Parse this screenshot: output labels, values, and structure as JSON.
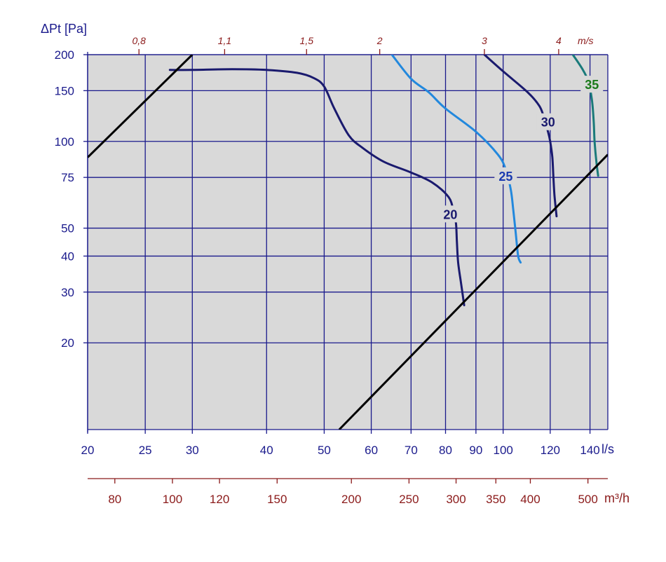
{
  "chart_data": {
    "type": "line",
    "x_scale": "log",
    "y_scale": "log",
    "xlim": [
      20,
      150
    ],
    "ylim": [
      10,
      200
    ],
    "grid": true,
    "ylabel": "ΔPt [Pa]",
    "xlabel": "l/s",
    "x2label": "m³/h",
    "velocity_label": "m/s",
    "x_ticks": [
      20,
      25,
      30,
      40,
      50,
      60,
      70,
      80,
      90,
      100,
      120,
      140
    ],
    "y_ticks": [
      20,
      30,
      40,
      50,
      75,
      100,
      150,
      200
    ],
    "x2_ticks": [
      80,
      100,
      120,
      150,
      200,
      250,
      300,
      350,
      400,
      500
    ],
    "velocity_ticks": [
      {
        "label": "0,8",
        "x": 24.4
      },
      {
        "label": "1,1",
        "x": 34.0
      },
      {
        "label": "1,5",
        "x": 46.7
      },
      {
        "label": "2",
        "x": 62.0
      },
      {
        "label": "3",
        "x": 93.0
      },
      {
        "label": "4",
        "x": 124.0
      }
    ],
    "series": [
      {
        "name": "20",
        "color": "#1a1a6e",
        "label_at": [
          81.5,
          56
        ],
        "points": [
          [
            27.5,
            177
          ],
          [
            30,
            177
          ],
          [
            35,
            178
          ],
          [
            40,
            177
          ],
          [
            45,
            173
          ],
          [
            48,
            166
          ],
          [
            50,
            155
          ],
          [
            52,
            130
          ],
          [
            55,
            105
          ],
          [
            58,
            95
          ],
          [
            63,
            85
          ],
          [
            70,
            78
          ],
          [
            76,
            72
          ],
          [
            81,
            64
          ],
          [
            82.5,
            57
          ],
          [
            83.3,
            52
          ],
          [
            83.6,
            45
          ],
          [
            84,
            38
          ],
          [
            85,
            32
          ],
          [
            86,
            27
          ]
        ]
      },
      {
        "name": "25",
        "color": "#2288dd",
        "label_at": [
          101,
          76
        ],
        "points": [
          [
            65,
            200
          ],
          [
            70,
            165
          ],
          [
            75,
            148
          ],
          [
            80,
            130
          ],
          [
            90,
            108
          ],
          [
            98,
            90
          ],
          [
            101,
            80
          ],
          [
            103,
            68
          ],
          [
            104,
            58
          ],
          [
            105,
            48
          ],
          [
            106,
            40
          ],
          [
            107,
            38
          ]
        ]
      },
      {
        "name": "30",
        "color": "#1a1a6e",
        "label_at": [
          119,
          117
        ],
        "points": [
          [
            93,
            200
          ],
          [
            100,
            175
          ],
          [
            110,
            148
          ],
          [
            115,
            133
          ],
          [
            117,
            122
          ],
          [
            119,
            108
          ],
          [
            120,
            100
          ],
          [
            121,
            88
          ],
          [
            121.5,
            75
          ],
          [
            122,
            65
          ],
          [
            123,
            55
          ]
        ]
      },
      {
        "name": "35",
        "color": "#1a7a7a",
        "label_at": [
          141,
          158
        ],
        "points": [
          [
            131,
            200
          ],
          [
            136,
            178
          ],
          [
            139,
            162
          ],
          [
            141,
            140
          ],
          [
            142,
            118
          ],
          [
            142.5,
            100
          ],
          [
            143.5,
            85
          ],
          [
            144.5,
            76
          ]
        ]
      }
    ],
    "system_lines": [
      {
        "points": [
          [
            20,
            88
          ],
          [
            30,
            200
          ]
        ]
      },
      {
        "points": [
          [
            53,
            10
          ],
          [
            150,
            90
          ]
        ]
      }
    ]
  }
}
